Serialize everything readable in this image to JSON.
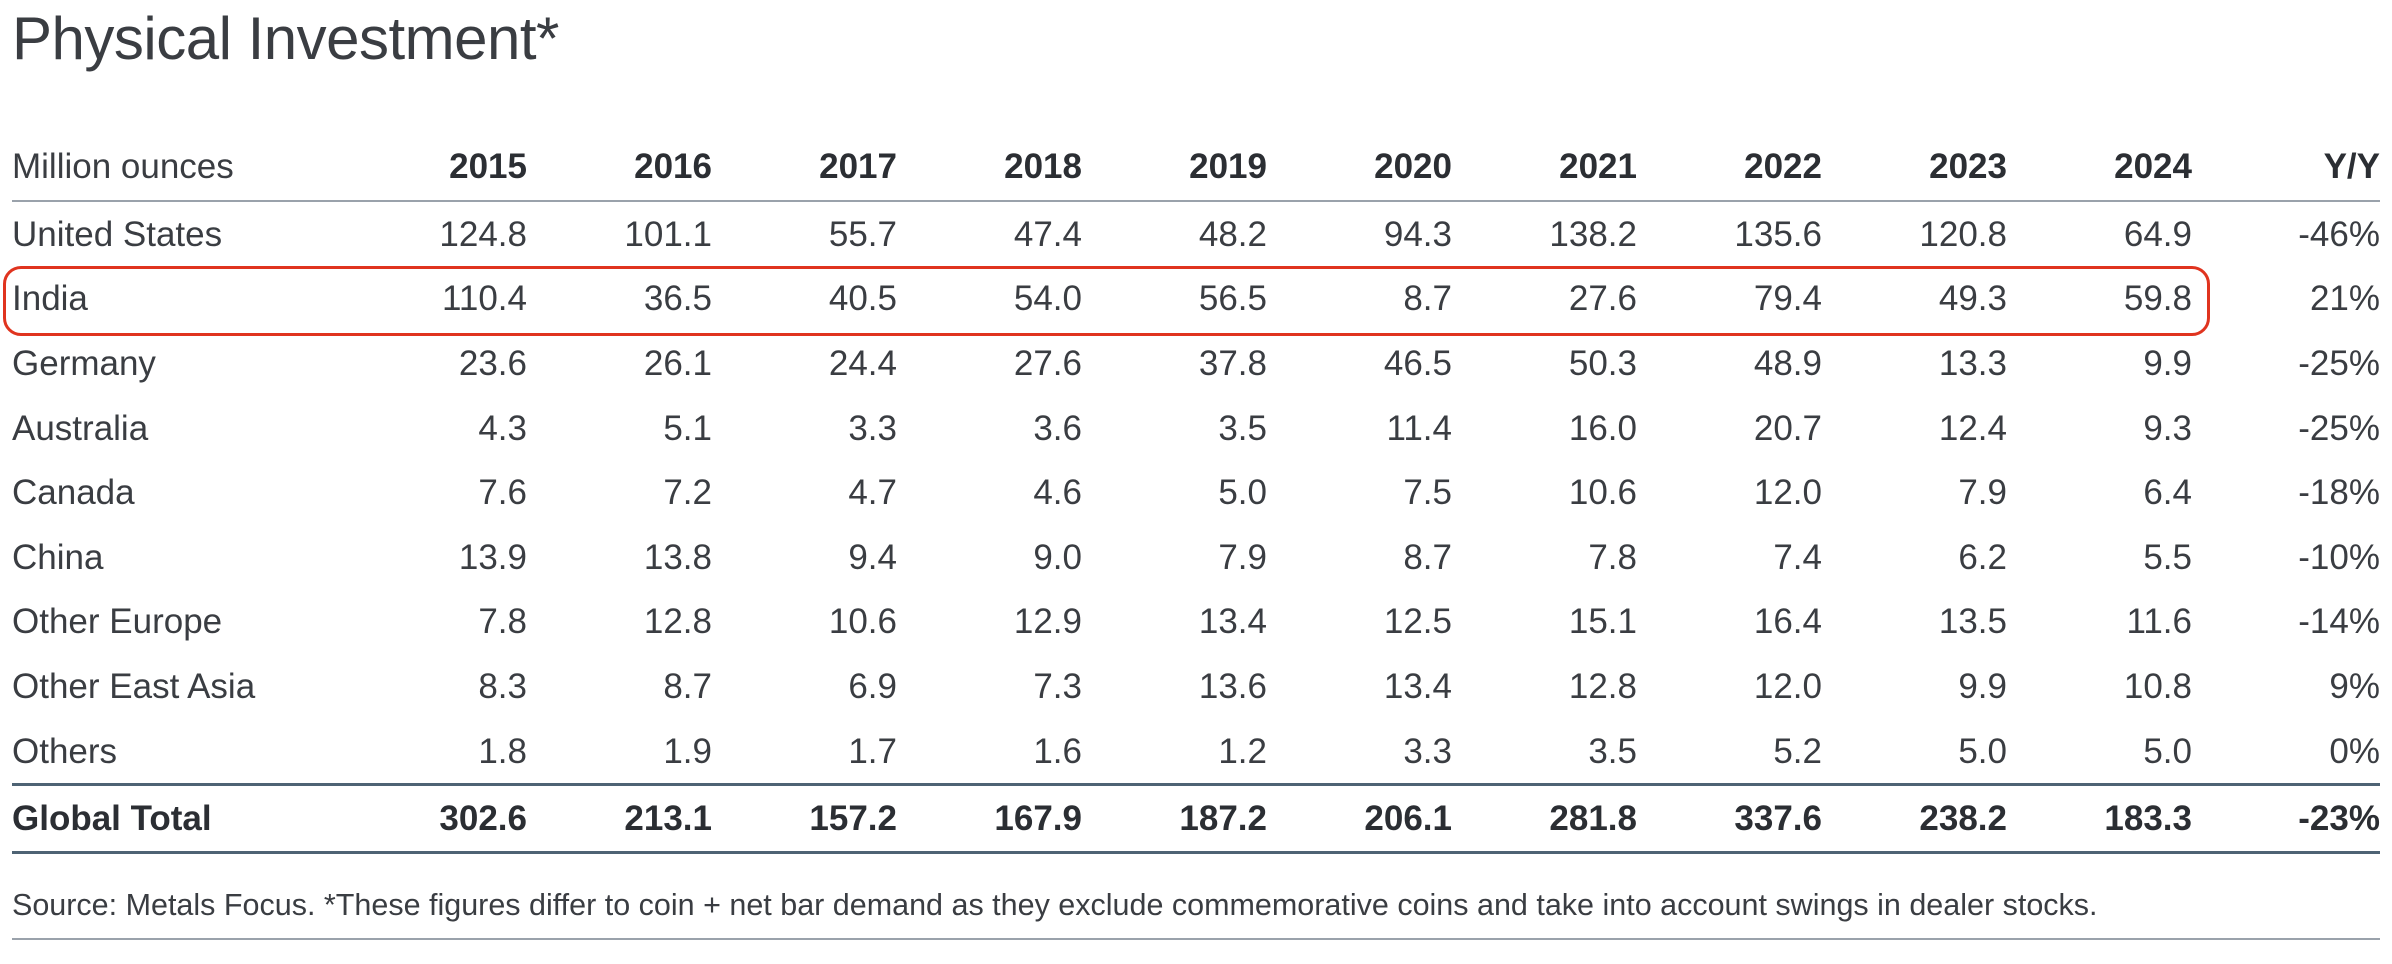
{
  "title": "Physical Investment*",
  "table": {
    "columns": [
      "Million ounces",
      "2015",
      "2016",
      "2017",
      "2018",
      "2019",
      "2020",
      "2021",
      "2022",
      "2023",
      "2024",
      "Y/Y"
    ],
    "rows": [
      [
        "United States",
        "124.8",
        "101.1",
        "55.7",
        "47.4",
        "48.2",
        "94.3",
        "138.2",
        "135.6",
        "120.8",
        "64.9",
        "-46%"
      ],
      [
        "India",
        "110.4",
        "36.5",
        "40.5",
        "54.0",
        "56.5",
        "8.7",
        "27.6",
        "79.4",
        "49.3",
        "59.8",
        "21%"
      ],
      [
        "Germany",
        "23.6",
        "26.1",
        "24.4",
        "27.6",
        "37.8",
        "46.5",
        "50.3",
        "48.9",
        "13.3",
        "9.9",
        "-25%"
      ],
      [
        "Australia",
        "4.3",
        "5.1",
        "3.3",
        "3.6",
        "3.5",
        "11.4",
        "16.0",
        "20.7",
        "12.4",
        "9.3",
        "-25%"
      ],
      [
        "Canada",
        "7.6",
        "7.2",
        "4.7",
        "4.6",
        "5.0",
        "7.5",
        "10.6",
        "12.0",
        "7.9",
        "6.4",
        "-18%"
      ],
      [
        "China",
        "13.9",
        "13.8",
        "9.4",
        "9.0",
        "7.9",
        "8.7",
        "7.8",
        "7.4",
        "6.2",
        "5.5",
        "-10%"
      ],
      [
        "Other Europe",
        "7.8",
        "12.8",
        "10.6",
        "12.9",
        "13.4",
        "12.5",
        "15.1",
        "16.4",
        "13.5",
        "11.6",
        "-14%"
      ],
      [
        "Other East Asia",
        "8.3",
        "8.7",
        "6.9",
        "7.3",
        "13.6",
        "13.4",
        "12.8",
        "12.0",
        "9.9",
        "10.8",
        "9%"
      ],
      [
        "Others",
        "1.8",
        "1.9",
        "1.7",
        "1.6",
        "1.2",
        "3.3",
        "3.5",
        "5.2",
        "5.0",
        "5.0",
        "0%"
      ]
    ],
    "total": [
      "Global Total",
      "302.6",
      "213.1",
      "157.2",
      "167.9",
      "187.2",
      "206.1",
      "281.8",
      "337.6",
      "238.2",
      "183.3",
      "-23%"
    ],
    "highlighted_row": "India"
  },
  "source": "Source: Metals Focus. *These figures differ to coin + net bar demand as they exclude commemorative coins and take into account swings in dealer stocks.",
  "colors": {
    "highlight": "#e0341f",
    "rule": "#4e6374",
    "text": "#3a3d42"
  }
}
